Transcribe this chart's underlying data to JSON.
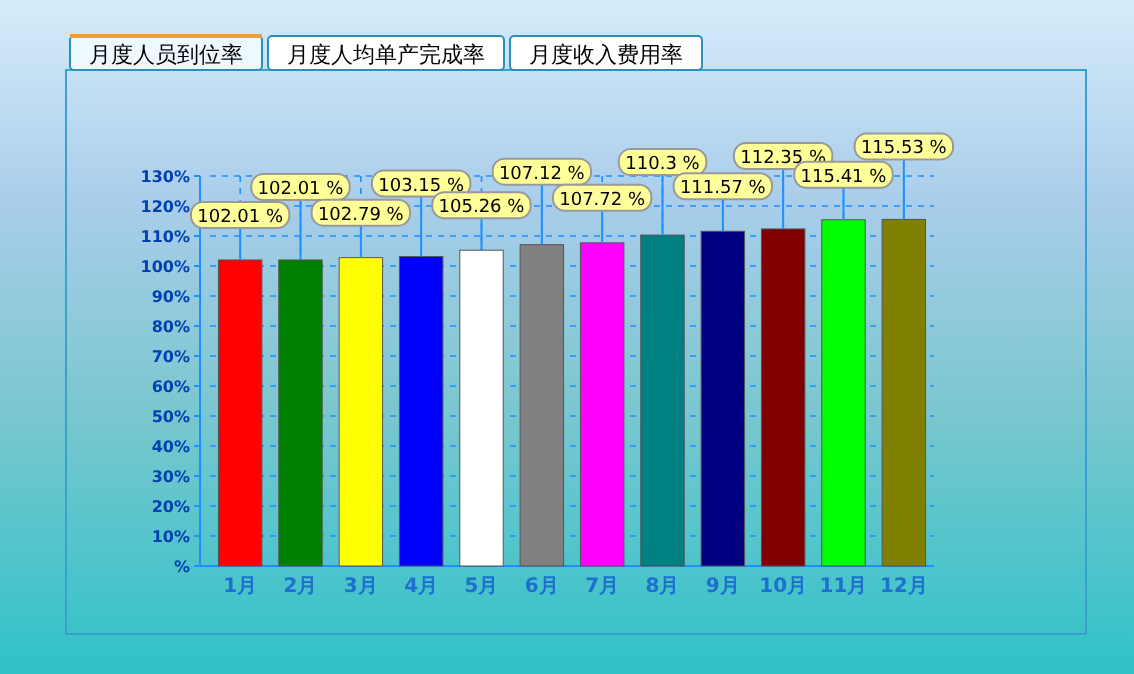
{
  "chart_data": {
    "type": "bar",
    "title": "月度人员到位率",
    "annotations": [
      "月度人均单产完成率",
      "月度收入费用率"
    ],
    "categories": [
      "1月",
      "2月",
      "3月",
      "4月",
      "5月",
      "6月",
      "7月",
      "8月",
      "9月",
      "10月",
      "11月",
      "12月"
    ],
    "values": [
      102.01,
      102.01,
      102.79,
      103.15,
      105.26,
      107.12,
      107.72,
      110.3,
      111.57,
      112.35,
      115.41,
      115.53
    ],
    "value_labels": [
      "102.01 %",
      "102.01 %",
      "102.79 %",
      "103.15 %",
      "105.26 %",
      "107.12 %",
      "107.72 %",
      "110.3 %",
      "111.57 %",
      "112.35 %",
      "115.41 %",
      "115.53 %"
    ],
    "colors": [
      "#ff0000",
      "#008000",
      "#ffff00",
      "#0000ff",
      "#ffffff",
      "#808080",
      "#ff00ff",
      "#008080",
      "#000080",
      "#800000",
      "#00ff00",
      "#808000"
    ],
    "ylim": [
      0,
      130
    ],
    "yticks": [
      {
        "value": 0,
        "label": "%"
      },
      {
        "value": 10,
        "label": "10%"
      },
      {
        "value": 20,
        "label": "20%"
      },
      {
        "value": 30,
        "label": "30%"
      },
      {
        "value": 40,
        "label": "40%"
      },
      {
        "value": 50,
        "label": "50%"
      },
      {
        "value": 60,
        "label": "60%"
      },
      {
        "value": 70,
        "label": "70%"
      },
      {
        "value": 80,
        "label": "80%"
      },
      {
        "value": 90,
        "label": "90%"
      },
      {
        "value": 100,
        "label": "100%"
      },
      {
        "value": 110,
        "label": "110%"
      },
      {
        "value": 120,
        "label": "120%"
      },
      {
        "value": 130,
        "label": "130%"
      }
    ],
    "grid": true
  }
}
